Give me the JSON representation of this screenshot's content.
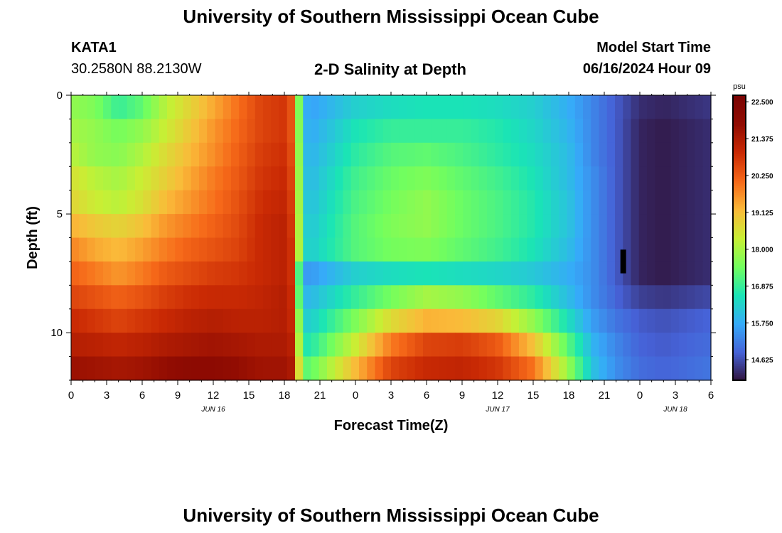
{
  "page": {
    "title": "University of Southern Mississippi Ocean Cube",
    "footer_title": "University of Southern Mississippi Ocean Cube"
  },
  "station": {
    "id": "KATA1",
    "coords": "30.2580N  88.2130W"
  },
  "model": {
    "start_label": "Model Start Time",
    "start_value": "06/16/2024 Hour 09"
  },
  "chart_data": {
    "type": "heatmap",
    "title": "2-D Salinity at Depth",
    "xlabel": "Forecast Time(Z)",
    "ylabel": "Depth (ft)",
    "x_hours_range": [
      0,
      54
    ],
    "x_tick_hours": [
      0,
      3,
      6,
      9,
      12,
      15,
      18,
      21,
      24,
      27,
      30,
      33,
      36,
      39,
      42,
      45,
      48,
      51,
      54
    ],
    "x_tick_labels": [
      "0",
      "3",
      "6",
      "9",
      "12",
      "15",
      "18",
      "21",
      "0",
      "3",
      "6",
      "9",
      "12",
      "15",
      "18",
      "21",
      "0",
      "3",
      "6"
    ],
    "date_labels": [
      {
        "text": "JUN 16",
        "hour": 12
      },
      {
        "text": "JUN 17",
        "hour": 36
      },
      {
        "text": "JUN 18",
        "hour": 51
      }
    ],
    "y_range_ft": [
      0,
      12
    ],
    "y_tick_values": [
      0,
      5,
      10
    ],
    "y_tick_labels": [
      "0",
      "5",
      "10"
    ],
    "colorbar": {
      "unit": "psu",
      "min": 14.0,
      "max": 22.7,
      "tick_values": [
        22.5,
        21.375,
        20.25,
        19.125,
        18.0,
        16.875,
        15.75,
        14.625
      ],
      "tick_labels": [
        "22.500",
        "21.375",
        "20.250",
        "19.125",
        "18.000",
        "16.875",
        "15.750",
        "14.625"
      ]
    },
    "depth_rows_ft": [
      0.5,
      1.5,
      2.5,
      3.5,
      4.5,
      5.5,
      6.5,
      7.5,
      8.5,
      9.5,
      10.5,
      11.5
    ],
    "time_nodes_hours": [
      0,
      2,
      4,
      6,
      8,
      10,
      12,
      14,
      16,
      18,
      18.7,
      19.4,
      20,
      24,
      27,
      30,
      33,
      36,
      39,
      42,
      44,
      46,
      48,
      50,
      54
    ],
    "salinity_psu": [
      [
        17.8,
        17.6,
        16.9,
        17.3,
        18.2,
        18.8,
        19.4,
        20.0,
        20.6,
        20.8,
        20.3,
        16.8,
        15.6,
        16.3,
        16.5,
        16.6,
        16.6,
        16.5,
        16.3,
        15.8,
        15.3,
        14.8,
        14.3,
        14.2,
        14.4
      ],
      [
        18.0,
        17.8,
        17.5,
        17.8,
        18.4,
        19.0,
        19.6,
        20.1,
        20.6,
        20.8,
        20.3,
        16.9,
        15.7,
        16.6,
        16.9,
        16.9,
        16.9,
        16.7,
        16.4,
        15.9,
        15.3,
        14.8,
        14.2,
        14.1,
        14.3
      ],
      [
        18.2,
        17.8,
        17.7,
        18.1,
        18.7,
        19.2,
        19.7,
        20.2,
        20.7,
        20.9,
        20.4,
        17.0,
        15.8,
        16.8,
        17.2,
        17.3,
        17.1,
        16.8,
        16.5,
        16.0,
        15.3,
        14.8,
        14.2,
        14.1,
        14.3
      ],
      [
        18.6,
        18.2,
        18.0,
        18.4,
        18.9,
        19.4,
        19.9,
        20.3,
        20.8,
        21.0,
        20.5,
        17.1,
        15.9,
        17.0,
        17.4,
        17.6,
        17.3,
        17.0,
        16.6,
        16.0,
        15.4,
        14.8,
        14.2,
        14.1,
        14.3
      ],
      [
        18.8,
        18.4,
        18.2,
        18.6,
        19.2,
        19.6,
        20.0,
        20.4,
        20.9,
        21.1,
        20.6,
        17.2,
        16.0,
        17.1,
        17.5,
        17.8,
        17.4,
        17.1,
        16.7,
        16.1,
        15.4,
        14.8,
        14.2,
        14.1,
        14.3
      ],
      [
        19.3,
        19.0,
        18.8,
        19.1,
        19.6,
        19.9,
        20.2,
        20.5,
        21.0,
        21.2,
        20.7,
        17.3,
        16.1,
        17.2,
        17.6,
        17.8,
        17.4,
        17.1,
        16.7,
        16.1,
        15.4,
        14.8,
        14.2,
        14.1,
        14.3
      ],
      [
        19.8,
        19.4,
        19.2,
        19.5,
        19.9,
        20.2,
        20.4,
        20.6,
        21.0,
        21.2,
        20.8,
        17.3,
        16.2,
        17.2,
        17.5,
        17.6,
        17.3,
        17.0,
        16.6,
        16.0,
        15.4,
        14.8,
        14.2,
        14.1,
        14.3
      ],
      [
        20.2,
        19.9,
        19.6,
        19.9,
        20.3,
        20.5,
        20.7,
        20.8,
        21.0,
        21.2,
        20.8,
        16.0,
        15.5,
        16.3,
        16.5,
        16.6,
        16.5,
        16.4,
        16.2,
        15.8,
        15.4,
        14.8,
        14.2,
        14.1,
        14.3
      ],
      [
        20.6,
        20.4,
        20.2,
        20.4,
        20.7,
        20.9,
        21.0,
        21.0,
        21.1,
        21.3,
        20.9,
        16.2,
        15.9,
        16.9,
        17.5,
        18.0,
        17.8,
        17.3,
        16.8,
        16.0,
        15.4,
        14.9,
        14.5,
        14.4,
        14.6
      ],
      [
        21.0,
        20.8,
        20.6,
        20.8,
        21.0,
        21.2,
        21.3,
        21.2,
        21.2,
        21.3,
        21.0,
        16.8,
        16.2,
        17.6,
        18.7,
        19.3,
        19.2,
        18.8,
        17.8,
        16.5,
        15.6,
        15.1,
        14.8,
        14.7,
        14.9
      ],
      [
        21.3,
        21.2,
        21.1,
        21.2,
        21.4,
        21.5,
        21.6,
        21.5,
        21.4,
        21.4,
        21.2,
        17.2,
        16.6,
        18.4,
        19.9,
        20.6,
        20.7,
        20.3,
        19.1,
        17.2,
        15.9,
        15.3,
        14.9,
        14.8,
        15.0
      ],
      [
        21.7,
        21.6,
        21.5,
        21.6,
        21.8,
        22.0,
        22.0,
        21.8,
        21.6,
        21.6,
        21.4,
        17.8,
        17.2,
        19.2,
        20.6,
        21.0,
        21.1,
        20.8,
        20.0,
        17.8,
        16.1,
        15.4,
        15.0,
        14.9,
        15.1
      ]
    ],
    "annotation_marker": {
      "hour": 46.6,
      "depth_from_ft": 6.5,
      "depth_to_ft": 7.5
    }
  }
}
